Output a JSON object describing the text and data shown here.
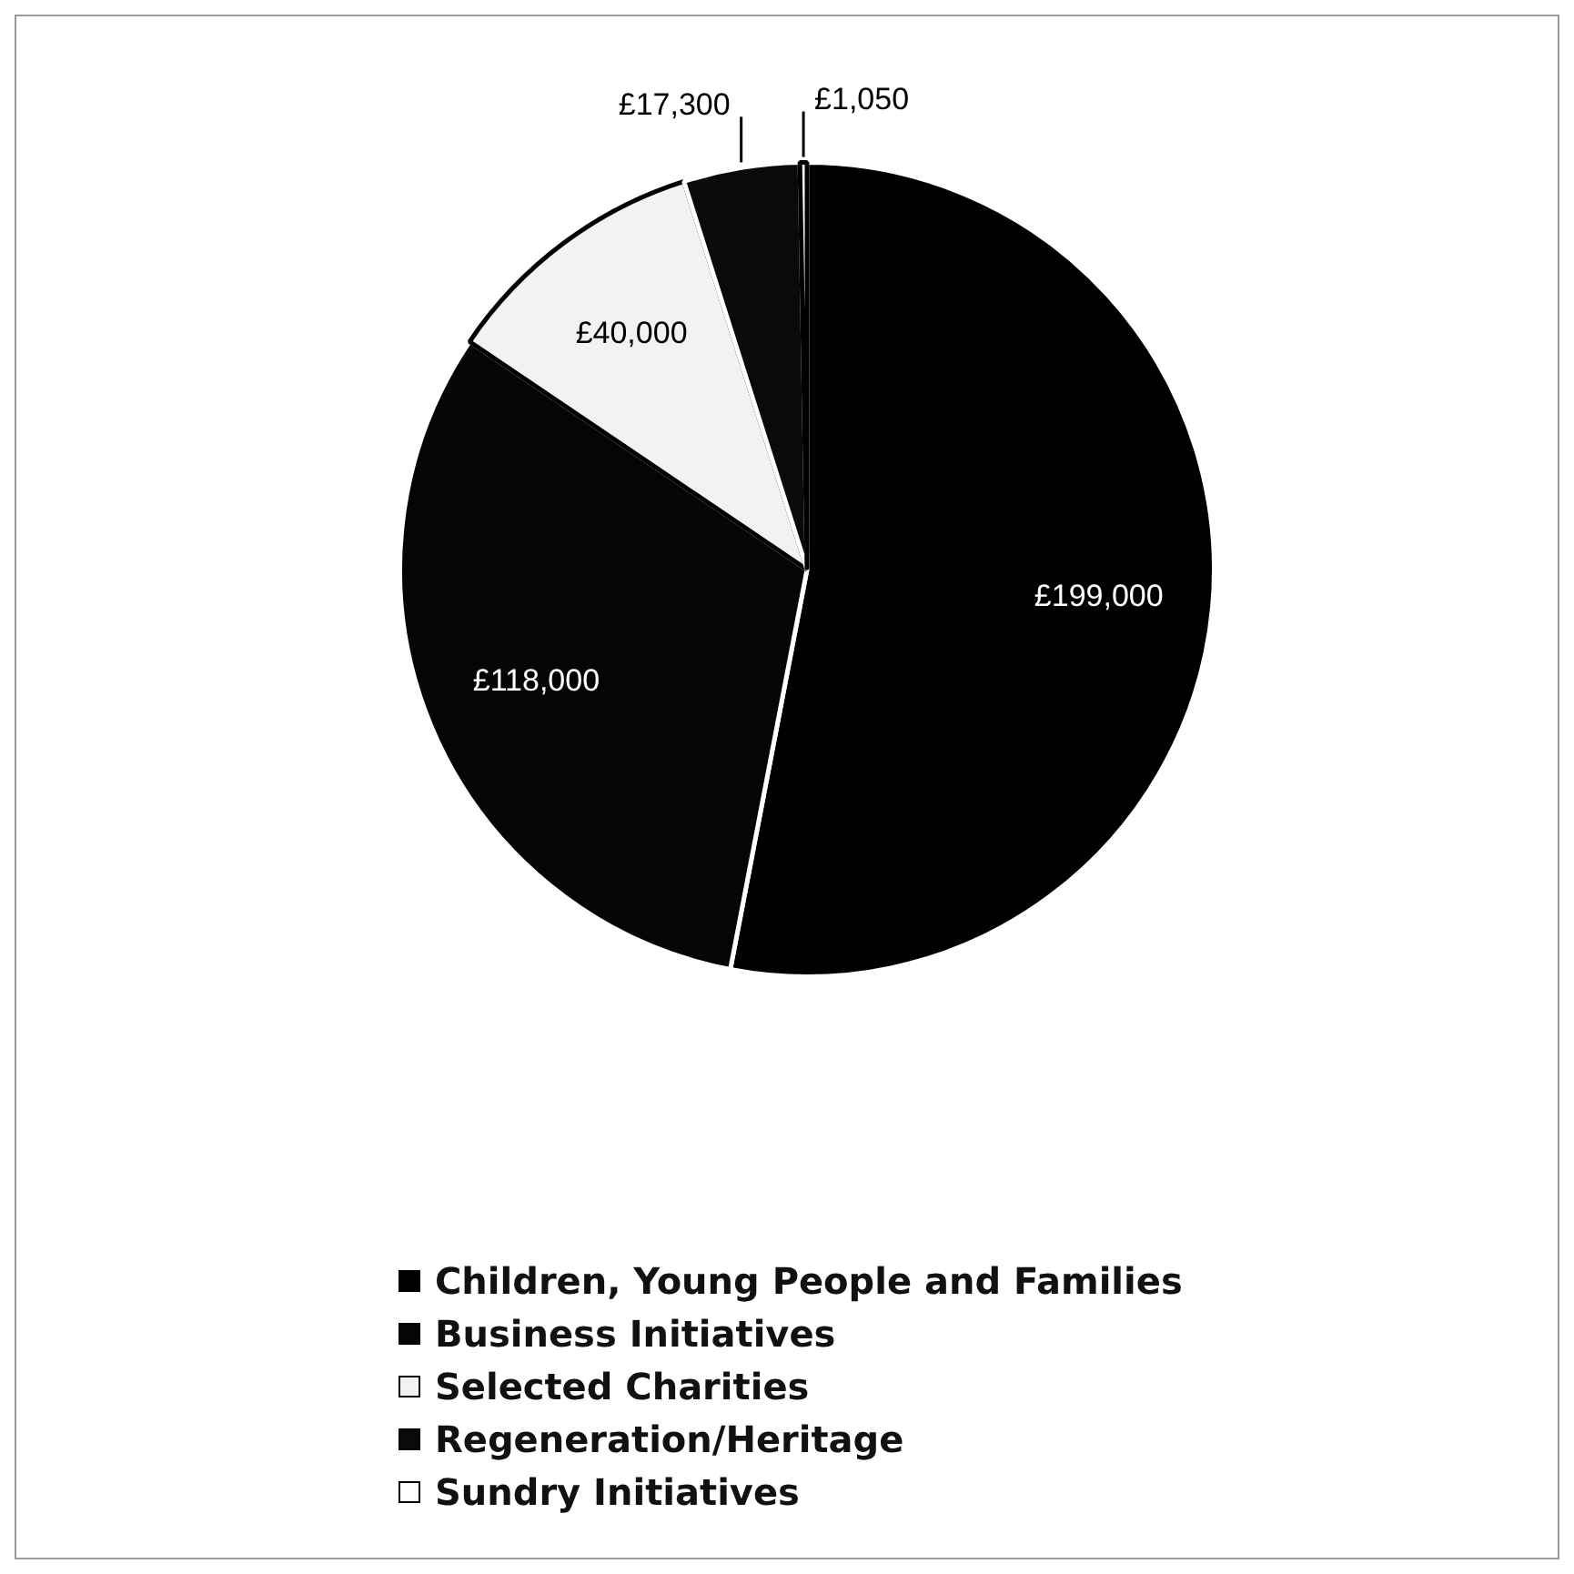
{
  "chart_data": {
    "type": "pie",
    "categories": [
      "Children, Young People and Families",
      "Business Initiatives",
      "Selected Charities",
      "Regeneration/Heritage",
      "Sundry Initiatives"
    ],
    "values": [
      199000,
      118000,
      40000,
      17300,
      1050
    ],
    "value_labels": [
      "£199,000",
      "£118,000",
      "£40,000",
      "£17,300",
      "£1,050"
    ],
    "colors": [
      "#000000",
      "#050505",
      "#f2f2f2",
      "#0a0a0a",
      "#ffffff"
    ],
    "legend": "bottom"
  }
}
